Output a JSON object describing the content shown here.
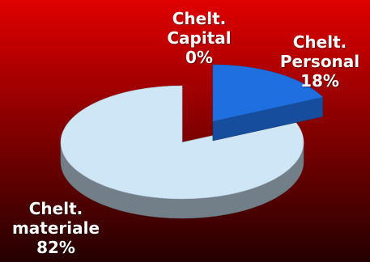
{
  "chart_data": {
    "type": "pie",
    "title": "",
    "slices": [
      {
        "category": "Chelt. Capital",
        "value": 0,
        "label_lines": [
          "Chelt.",
          "Capital",
          "0%"
        ],
        "color": "#d9d9d9"
      },
      {
        "category": "Chelt. Personal",
        "value": 18,
        "label_lines": [
          "Chelt.",
          "Personal",
          "18%"
        ],
        "color": "#1f6fe0"
      },
      {
        "category": "Chelt. materiale",
        "value": 82,
        "label_lines": [
          "Chelt.",
          "materiale",
          "82%"
        ],
        "color": "#cfe6f7"
      }
    ],
    "legend": "none",
    "style": "3d-pie",
    "background": {
      "top": "#e00000",
      "bottom": "#240000"
    }
  }
}
